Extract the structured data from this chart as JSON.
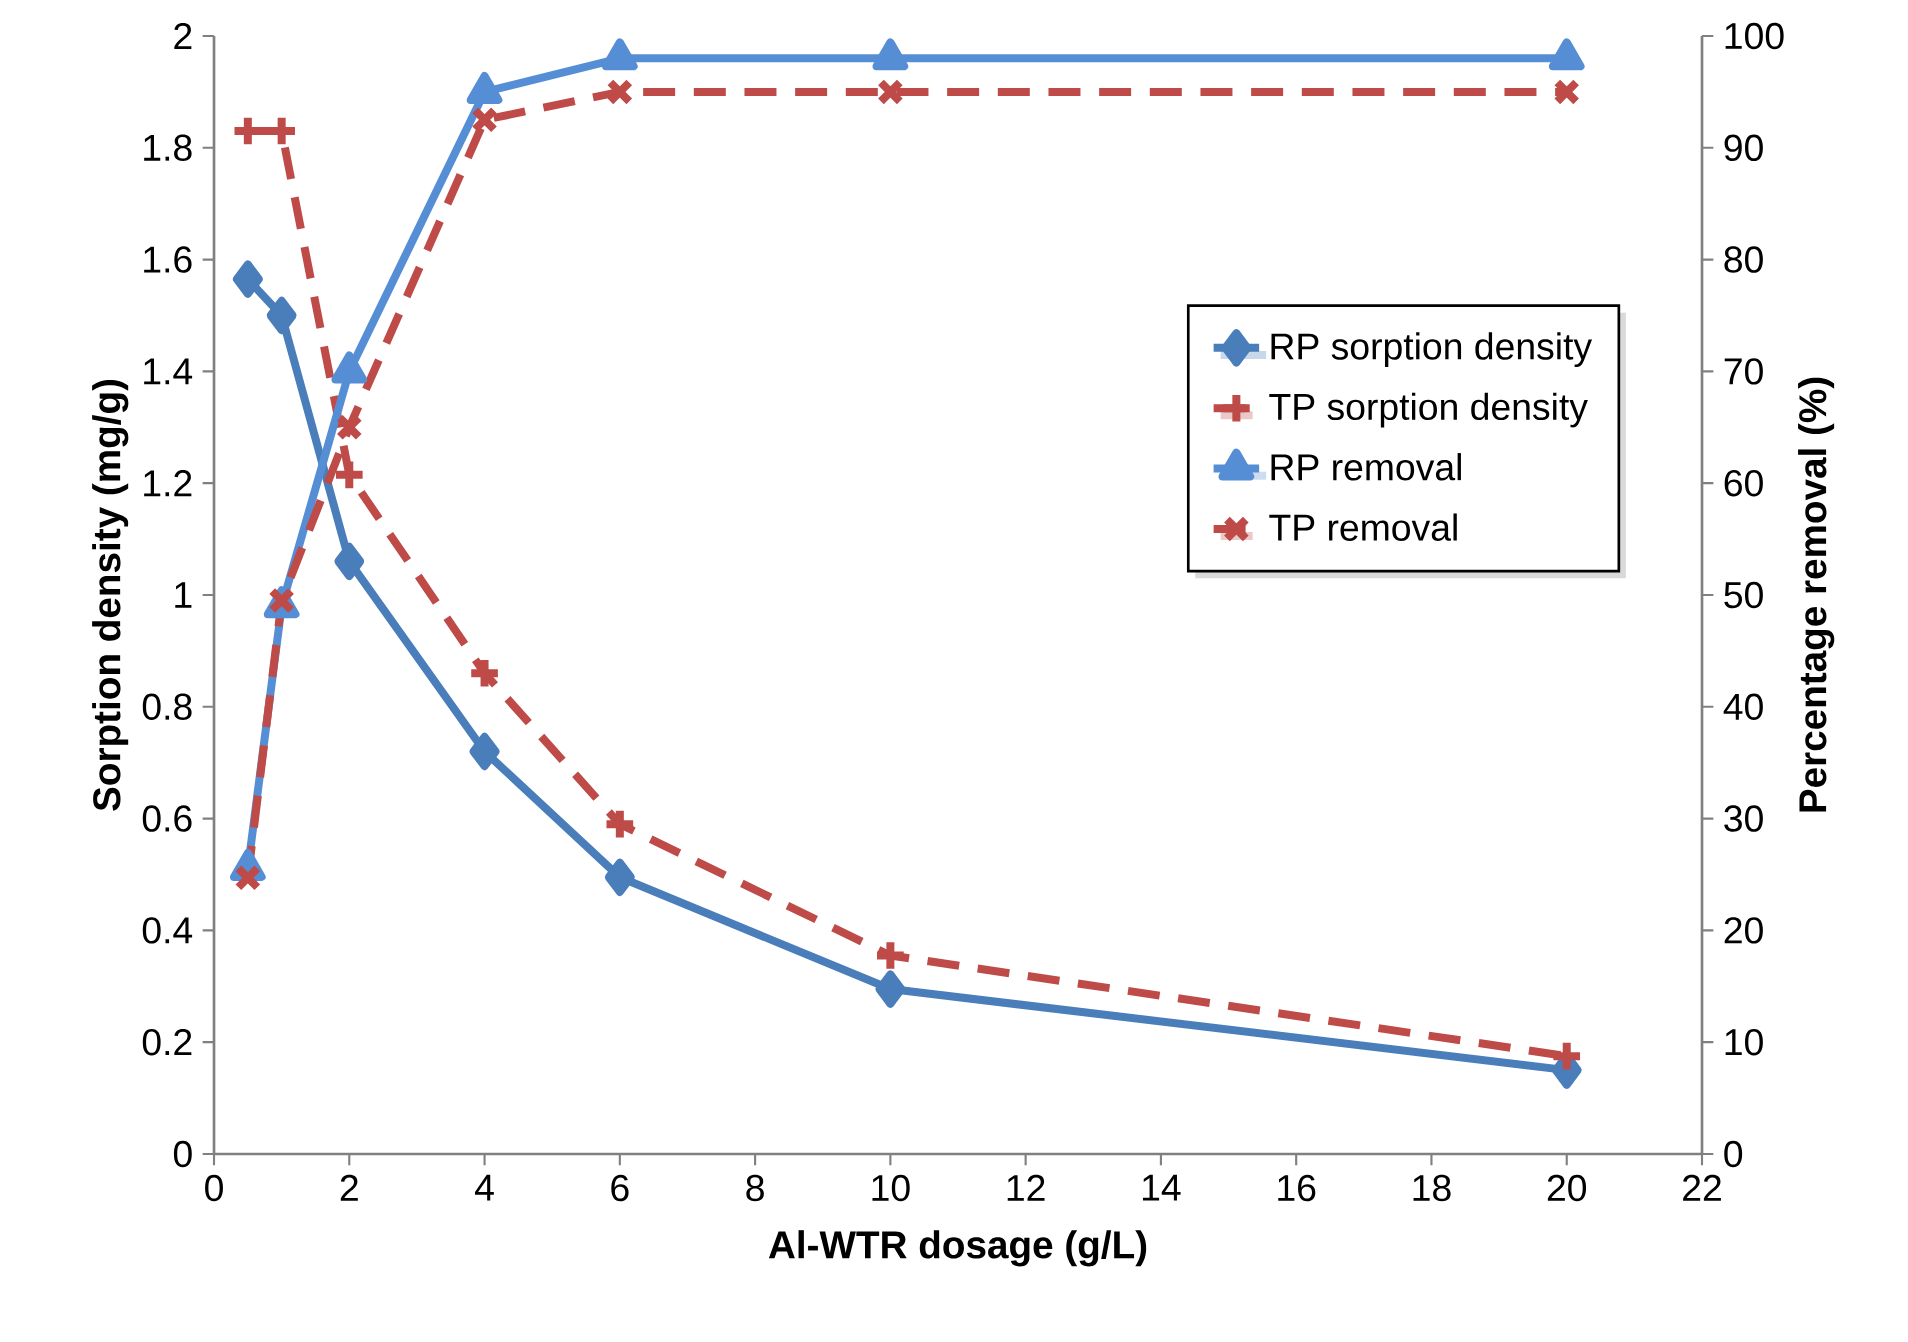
{
  "chart_data": {
    "type": "line",
    "xlabel": "Al-WTR dosage (g/L)",
    "ylabel": "Sorption density (mg/g)",
    "y2label": "Percentage removal (%)",
    "x": [
      0.5,
      1,
      2,
      4,
      6,
      10,
      20
    ],
    "xlim": [
      0,
      22
    ],
    "xticks": [
      0,
      2,
      4,
      6,
      8,
      10,
      12,
      14,
      16,
      18,
      20,
      22
    ],
    "ylim": [
      0,
      2
    ],
    "yticks": [
      0,
      0.2,
      0.4,
      0.6,
      0.8,
      1,
      1.2,
      1.4,
      1.6,
      1.8,
      2
    ],
    "y2lim": [
      0,
      100
    ],
    "y2ticks": [
      0,
      10,
      20,
      30,
      40,
      50,
      60,
      70,
      80,
      90,
      100
    ],
    "grid": false,
    "legend": "right",
    "series": [
      {
        "name": "RP sorption density",
        "color": "#4a7ebb",
        "marker": "diamond",
        "line_style": "solid",
        "values": [
          1.565,
          1.5,
          1.06,
          0.72,
          0.495,
          0.295,
          0.15
        ]
      },
      {
        "name": "TP sorption density",
        "color": "#be4b48",
        "marker": "plus",
        "line_style": "dashed",
        "values": [
          1.83,
          1.83,
          1.215,
          0.86,
          0.59,
          0.355,
          0.175
        ]
      },
      {
        "name": "RP removal",
        "color": "#558ed5",
        "marker": "triangle",
        "line_style": "solid",
        "axis": "y2",
        "values": [
          25.5,
          49,
          70,
          95,
          98,
          98,
          98
        ]
      },
      {
        "name": "TP removal",
        "color": "#be4b48",
        "marker": "cross",
        "line_style": "dashed",
        "axis": "y2",
        "values": [
          24.7,
          49.5,
          65,
          92.5,
          95,
          95,
          95
        ]
      }
    ]
  }
}
